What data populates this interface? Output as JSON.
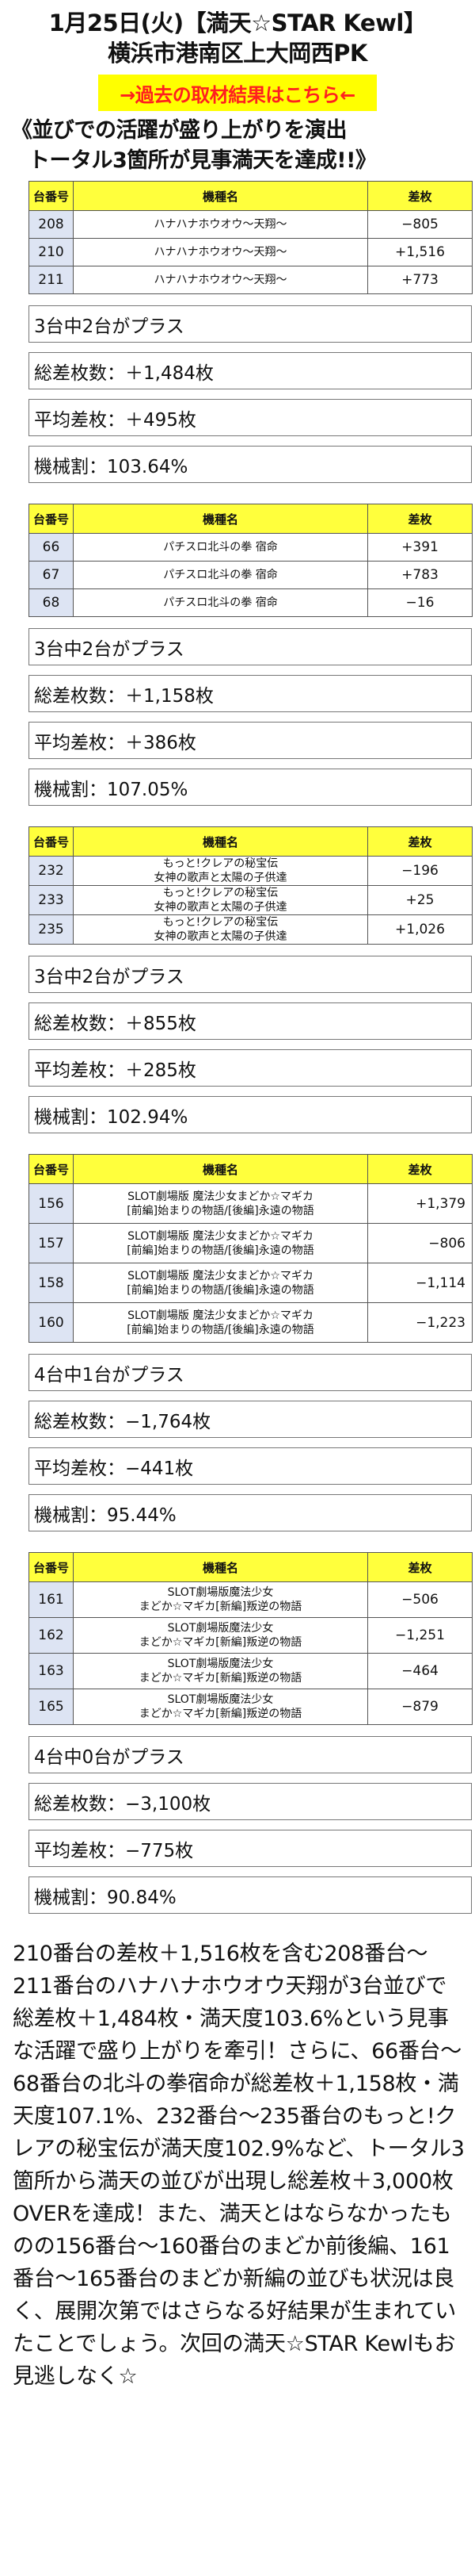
{
  "header": {
    "line1": "1月25日(火)【満天☆STAR Kewl】",
    "line2": "横浜市港南区上大岡西PK",
    "link_label": "→過去の取材結果はこちら←",
    "headline1": "《並びでの活躍が盛り上がりを演出",
    "headline2": "トータル3箇所が見事満天を達成!!》"
  },
  "columns": {
    "no": "台番号",
    "name": "機種名",
    "diff": "差枚"
  },
  "groups": [
    {
      "rows": [
        {
          "no": "208",
          "name": [
            "ハナハナホウオウ〜天翔〜"
          ],
          "diff": "−805"
        },
        {
          "no": "210",
          "name": [
            "ハナハナホウオウ〜天翔〜"
          ],
          "diff": "+1,516"
        },
        {
          "no": "211",
          "name": [
            "ハナハナホウオウ〜天翔〜"
          ],
          "diff": "+773"
        }
      ],
      "summary": {
        "plus": "3台中2台がプラス",
        "total": "総差枚数：＋1,484枚",
        "avg": "平均差枚：＋495枚",
        "rate": "機械割：103.64%"
      }
    },
    {
      "rows": [
        {
          "no": "66",
          "name": [
            "パチスロ北斗の拳 宿命"
          ],
          "diff": "+391"
        },
        {
          "no": "67",
          "name": [
            "パチスロ北斗の拳 宿命"
          ],
          "diff": "+783"
        },
        {
          "no": "68",
          "name": [
            "パチスロ北斗の拳 宿命"
          ],
          "diff": "−16"
        }
      ],
      "summary": {
        "plus": "3台中2台がプラス",
        "total": "総差枚数：＋1,158枚",
        "avg": "平均差枚：＋386枚",
        "rate": "機械割：107.05%"
      }
    },
    {
      "rows": [
        {
          "no": "232",
          "name": [
            "もっと!クレアの秘宝伝",
            "女神の歌声と太陽の子供達"
          ],
          "diff": "−196"
        },
        {
          "no": "233",
          "name": [
            "もっと!クレアの秘宝伝",
            "女神の歌声と太陽の子供達"
          ],
          "diff": "+25"
        },
        {
          "no": "235",
          "name": [
            "もっと!クレアの秘宝伝",
            "女神の歌声と太陽の子供達"
          ],
          "diff": "+1,026"
        }
      ],
      "summary": {
        "plus": "3台中2台がプラス",
        "total": "総差枚数：＋855枚",
        "avg": "平均差枚：＋285枚",
        "rate": "機械割：102.94%"
      }
    },
    {
      "rows": [
        {
          "no": "156",
          "name": [
            "SLOT劇場版 魔法少女まどか☆マギカ",
            "[前編]始まりの物語/[後編]永遠の物語"
          ],
          "diff": "+1,379"
        },
        {
          "no": "157",
          "name": [
            "SLOT劇場版 魔法少女まどか☆マギカ",
            "[前編]始まりの物語/[後編]永遠の物語"
          ],
          "diff": "−806"
        },
        {
          "no": "158",
          "name": [
            "SLOT劇場版 魔法少女まどか☆マギカ",
            "[前編]始まりの物語/[後編]永遠の物語"
          ],
          "diff": "−1,114"
        },
        {
          "no": "160",
          "name": [
            "SLOT劇場版 魔法少女まどか☆マギカ",
            "[前編]始まりの物語/[後編]永遠の物語"
          ],
          "diff": "−1,223"
        }
      ],
      "summary": {
        "plus": "4台中1台がプラス",
        "total": "総差枚数：−1,764枚",
        "avg": "平均差枚：−441枚",
        "rate": "機械割：95.44%"
      }
    },
    {
      "rows": [
        {
          "no": "161",
          "name": [
            "SLOT劇場版魔法少女",
            "まどか☆マギカ[新編]叛逆の物語"
          ],
          "diff": "−506"
        },
        {
          "no": "162",
          "name": [
            "SLOT劇場版魔法少女",
            "まどか☆マギカ[新編]叛逆の物語"
          ],
          "diff": "−1,251"
        },
        {
          "no": "163",
          "name": [
            "SLOT劇場版魔法少女",
            "まどか☆マギカ[新編]叛逆の物語"
          ],
          "diff": "−464"
        },
        {
          "no": "165",
          "name": [
            "SLOT劇場版魔法少女",
            "まどか☆マギカ[新編]叛逆の物語"
          ],
          "diff": "−879"
        }
      ],
      "summary": {
        "plus": "4台中0台がプラス",
        "total": "総差枚数：−3,100枚",
        "avg": "平均差枚：−775枚",
        "rate": "機械割：90.84%"
      }
    }
  ],
  "article": "210番台の差枚＋1,516枚を含む208番台〜211番台のハナハナホウオウ天翔が3台並びで総差枚＋1,484枚・満天度103.6%という見事な活躍で盛り上がりを牽引！さらに、66番台〜68番台の北斗の拳宿命が総差枚＋1,158枚・満天度107.1%、232番台〜235番台のもっと!クレアの秘宝伝が満天度102.9%など、トータル3箇所から満天の並びが出現し総差枚＋3,000枚OVERを達成！また、満天とはならなかったものの156番台〜160番台のまどか前後編、161番台〜165番台のまどか新編の並びも状況は良く、展開次第ではさらなる好結果が生まれていたことでしょう。次回の満天☆STAR Kewlもお見逃しなく☆"
}
